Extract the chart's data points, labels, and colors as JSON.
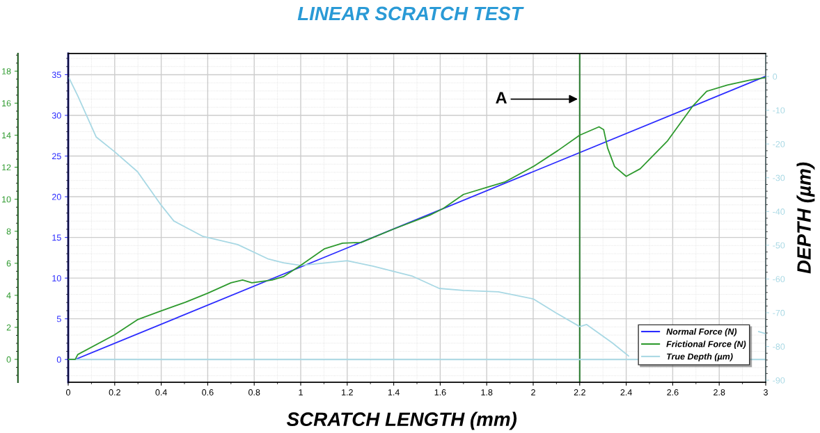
{
  "chart_data": {
    "type": "line",
    "title": "LINEAR SCRATCH TEST",
    "xlabel": "SCRATCH LENGTH (mm)",
    "y2label": "DEPTH (µm)",
    "xlim": [
      0,
      3
    ],
    "xticks": [
      0,
      0.2,
      0.4,
      0.6,
      0.8,
      1,
      1.2,
      1.4,
      1.6,
      1.8,
      2,
      2.2,
      2.4,
      2.6,
      2.8,
      3
    ],
    "ylim": [
      -2.8,
      37.6
    ],
    "yticks": [
      0,
      5,
      10,
      15,
      20,
      25,
      30,
      35
    ],
    "y2lim": [
      -90.6,
      6.8
    ],
    "y2ticks": [
      -90,
      -80,
      -70,
      -60,
      -50,
      -40,
      -30,
      -20,
      -10,
      0
    ],
    "y3lim": [
      -1.43,
      19.1
    ],
    "y3ticks": [
      0,
      2,
      4,
      6,
      8,
      10,
      12,
      14,
      16,
      18
    ],
    "grid": true,
    "legend": "bottom right",
    "line_style": "solid",
    "marker": "none",
    "series": [
      {
        "name": "Normal Force (N)",
        "color": "#2b2bff",
        "x": [
          0,
          0.03,
          3
        ],
        "values": [
          0,
          0,
          34.8
        ]
      },
      {
        "name": "Frictional Force (N)",
        "color": "#2e9a2e",
        "axis": "y3",
        "x": [
          0,
          0.03,
          0.041,
          0.198,
          0.298,
          0.395,
          0.504,
          0.6,
          0.7,
          0.75,
          0.79,
          0.877,
          0.926,
          1.0,
          1.103,
          1.18,
          1.26,
          1.398,
          1.555,
          1.614,
          1.7,
          1.8,
          1.88,
          2.0,
          2.106,
          2.2,
          2.283,
          2.303,
          2.32,
          2.35,
          2.4,
          2.46,
          2.578,
          2.687,
          2.746,
          2.835,
          2.93,
          3.0
        ],
        "values": [
          0,
          0,
          0.3,
          1.52,
          2.48,
          3.0,
          3.57,
          4.13,
          4.78,
          4.96,
          4.78,
          4.96,
          5.17,
          5.87,
          6.91,
          7.26,
          7.3,
          8.13,
          9.0,
          9.43,
          10.3,
          10.74,
          11.09,
          12.04,
          13.04,
          14.0,
          14.52,
          14.35,
          13.2,
          12.04,
          11.43,
          11.9,
          13.65,
          15.83,
          16.74,
          17.13,
          17.43,
          17.6
        ]
      },
      {
        "name": "True Depth (µm)",
        "color": "#a8d8e4",
        "axis": "y2",
        "x": [
          0.003,
          0.04,
          0.12,
          0.198,
          0.298,
          0.395,
          0.454,
          0.58,
          0.729,
          0.858,
          0.926,
          1.0,
          1.2,
          1.31,
          1.478,
          1.596,
          1.7,
          1.85,
          2.0,
          2.097,
          2.2,
          2.23,
          2.34,
          2.41,
          2.7,
          2.97,
          3.0
        ],
        "values": [
          -0.4,
          -5.6,
          -17.9,
          -22.2,
          -28.2,
          -37.7,
          -42.8,
          -47.4,
          -49.8,
          -54,
          -55.2,
          -56.0,
          -54.6,
          -56.2,
          -59.1,
          -62.8,
          -63.4,
          -63.8,
          -65.9,
          -70,
          -74.1,
          -73.5,
          -78.9,
          -82.8,
          null,
          -75.6,
          -76.2
        ]
      }
    ],
    "ref_lines": [
      {
        "axis": "x",
        "value": 2.2,
        "color": "#2e7d32"
      },
      {
        "axis": "y",
        "value": 0,
        "color": "#a8d8e4"
      }
    ],
    "annotations": [
      {
        "text": "A",
        "x": 2.2,
        "y": 32
      }
    ]
  }
}
